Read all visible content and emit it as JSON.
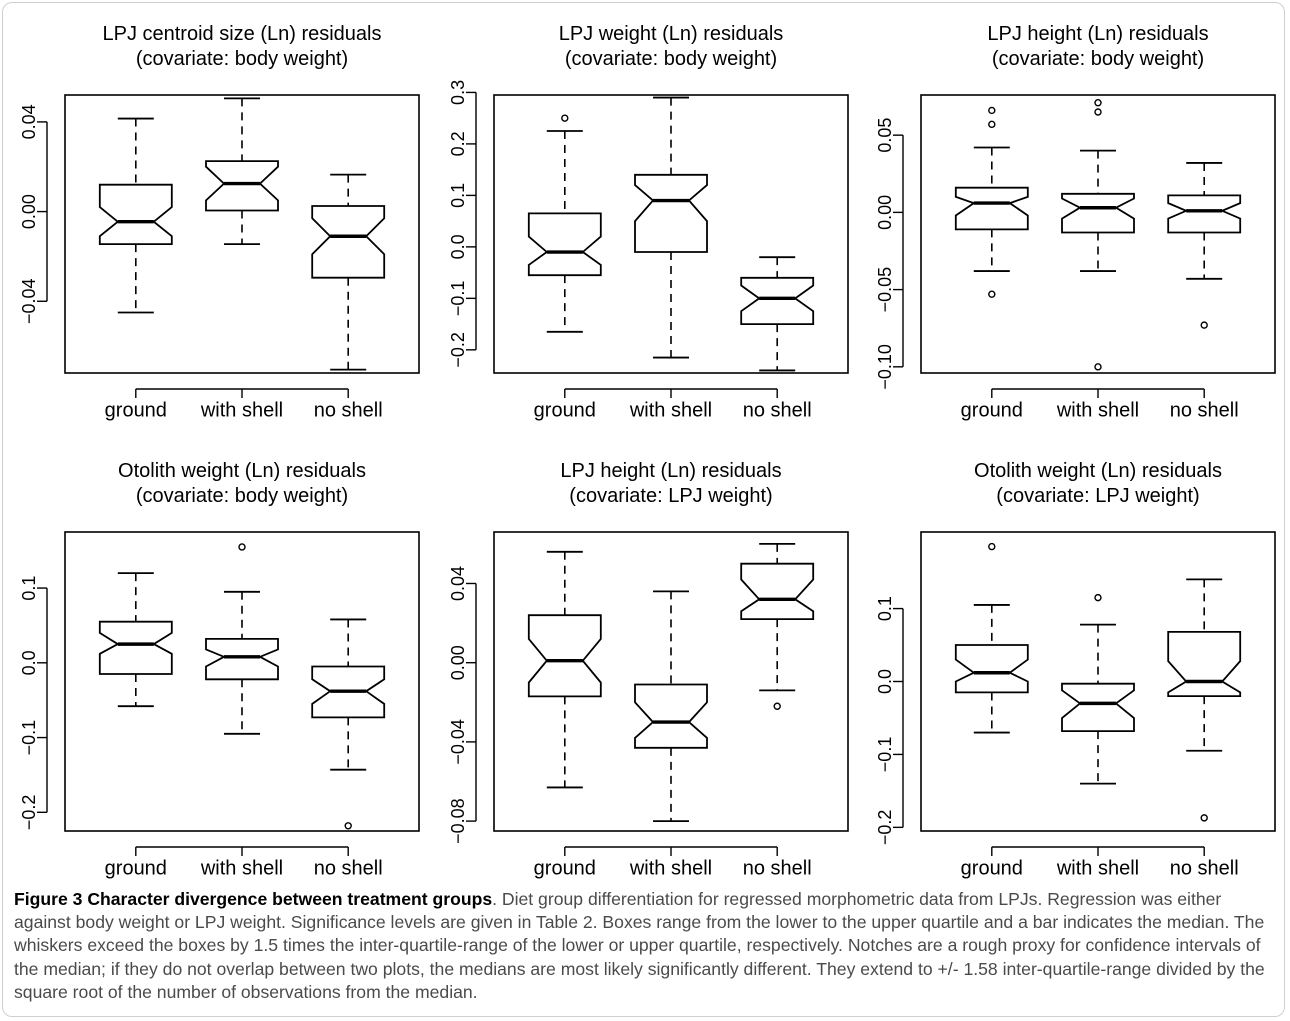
{
  "chart_data": [
    {
      "type": "boxplot",
      "title": "LPJ centroid size (Ln) residuals",
      "subtitle": "(covariate: body weight)",
      "categories": [
        "ground",
        "with shell",
        "no shell"
      ],
      "ylim": [
        -0.072,
        0.052
      ],
      "yticks": [
        -0.04,
        0.0,
        0.04
      ],
      "ytick_labels": [
        "−0.04",
        "0.00",
        "0.04"
      ],
      "series": [
        {
          "name": "ground",
          "whisker_low": -0.045,
          "q1": -0.0145,
          "median": -0.0045,
          "q3": 0.012,
          "whisker_high": 0.0415,
          "notch": [
            -0.011,
            0.002
          ],
          "outliers": []
        },
        {
          "name": "with shell",
          "whisker_low": -0.0145,
          "q1": 0.0005,
          "median": 0.0125,
          "q3": 0.0225,
          "whisker_high": 0.0505,
          "notch": [
            0.005,
            0.02
          ],
          "outliers": []
        },
        {
          "name": "no shell",
          "whisker_low": -0.0705,
          "q1": -0.0295,
          "median": -0.011,
          "q3": 0.0025,
          "whisker_high": 0.0165,
          "notch": [
            -0.019,
            -0.003
          ],
          "outliers": []
        }
      ]
    },
    {
      "type": "boxplot",
      "title": "LPJ weight (Ln) residuals",
      "subtitle": "(covariate: body weight)",
      "categories": [
        "ground",
        "with shell",
        "no shell"
      ],
      "ylim": [
        -0.245,
        0.295
      ],
      "yticks": [
        -0.2,
        -0.1,
        0.0,
        0.1,
        0.2,
        0.3
      ],
      "ytick_labels": [
        "−0.2",
        "−0.1",
        "0.0",
        "0.1",
        "0.2",
        "0.3"
      ],
      "series": [
        {
          "name": "ground",
          "whisker_low": -0.165,
          "q1": -0.055,
          "median": -0.01,
          "q3": 0.065,
          "whisker_high": 0.225,
          "notch": [
            -0.035,
            0.02
          ],
          "outliers": [
            0.25
          ]
        },
        {
          "name": "with shell",
          "whisker_low": -0.215,
          "q1": -0.01,
          "median": 0.09,
          "q3": 0.14,
          "whisker_high": 0.29,
          "notch": [
            0.05,
            0.12
          ],
          "outliers": []
        },
        {
          "name": "no shell",
          "whisker_low": -0.24,
          "q1": -0.15,
          "median": -0.1,
          "q3": -0.06,
          "whisker_high": -0.02,
          "notch": [
            -0.125,
            -0.075
          ],
          "outliers": []
        }
      ]
    },
    {
      "type": "boxplot",
      "title": "LPJ height (Ln) residuals",
      "subtitle": "(covariate: body weight)",
      "categories": [
        "ground",
        "with shell",
        "no shell"
      ],
      "ylim": [
        -0.104,
        0.076
      ],
      "yticks": [
        -0.1,
        -0.05,
        0.0,
        0.05
      ],
      "ytick_labels": [
        "−0.10",
        "−0.05",
        "0.00",
        "0.05"
      ],
      "series": [
        {
          "name": "ground",
          "whisker_low": -0.038,
          "q1": -0.011,
          "median": 0.006,
          "q3": 0.016,
          "whisker_high": 0.042,
          "notch": [
            -0.002,
            0.01
          ],
          "outliers": [
            0.066,
            0.057,
            -0.053
          ]
        },
        {
          "name": "with shell",
          "whisker_low": -0.038,
          "q1": -0.013,
          "median": 0.003,
          "q3": 0.012,
          "whisker_high": 0.04,
          "notch": [
            -0.004,
            0.009
          ],
          "outliers": [
            0.071,
            0.065,
            -0.1
          ]
        },
        {
          "name": "no shell",
          "whisker_low": -0.043,
          "q1": -0.013,
          "median": 0.001,
          "q3": 0.011,
          "whisker_high": 0.032,
          "notch": [
            -0.004,
            0.006
          ],
          "outliers": [
            -0.073
          ]
        }
      ]
    },
    {
      "type": "boxplot",
      "title": "Otolith weight (Ln) residuals",
      "subtitle": "(covariate: body weight)",
      "categories": [
        "ground",
        "with shell",
        "no shell"
      ],
      "ylim": [
        -0.225,
        0.175
      ],
      "yticks": [
        -0.2,
        -0.1,
        0.0,
        0.1
      ],
      "ytick_labels": [
        "−0.2",
        "−0.1",
        "0.0",
        "0.1"
      ],
      "series": [
        {
          "name": "ground",
          "whisker_low": -0.058,
          "q1": -0.015,
          "median": 0.025,
          "q3": 0.055,
          "whisker_high": 0.12,
          "notch": [
            0.012,
            0.04
          ],
          "outliers": []
        },
        {
          "name": "with shell",
          "whisker_low": -0.095,
          "q1": -0.022,
          "median": 0.008,
          "q3": 0.032,
          "whisker_high": 0.095,
          "notch": [
            -0.005,
            0.018
          ],
          "outliers": [
            0.155
          ]
        },
        {
          "name": "no shell",
          "whisker_low": -0.143,
          "q1": -0.073,
          "median": -0.038,
          "q3": -0.005,
          "whisker_high": 0.058,
          "notch": [
            -0.055,
            -0.022
          ],
          "outliers": [
            -0.218
          ]
        }
      ]
    },
    {
      "type": "boxplot",
      "title": "LPJ height (Ln) residuals",
      "subtitle": "(covariate: LPJ weight)",
      "categories": [
        "ground",
        "with shell",
        "no shell"
      ],
      "ylim": [
        -0.085,
        0.066
      ],
      "yticks": [
        -0.08,
        -0.04,
        0.0,
        0.04
      ],
      "ytick_labels": [
        "−0.08",
        "−0.04",
        "0.00",
        "0.04"
      ],
      "series": [
        {
          "name": "ground",
          "whisker_low": -0.063,
          "q1": -0.017,
          "median": 0.001,
          "q3": 0.024,
          "whisker_high": 0.056,
          "notch": [
            -0.01,
            0.012
          ],
          "outliers": []
        },
        {
          "name": "with shell",
          "whisker_low": -0.08,
          "q1": -0.043,
          "median": -0.03,
          "q3": -0.011,
          "whisker_high": 0.036,
          "notch": [
            -0.038,
            -0.02
          ],
          "outliers": []
        },
        {
          "name": "no shell",
          "whisker_low": -0.014,
          "q1": 0.022,
          "median": 0.032,
          "q3": 0.05,
          "whisker_high": 0.06,
          "notch": [
            0.026,
            0.042
          ],
          "outliers": [
            -0.022
          ]
        }
      ]
    },
    {
      "type": "boxplot",
      "title": "Otolith weight (Ln) residuals",
      "subtitle": "(covariate: LPJ weight)",
      "categories": [
        "ground",
        "with shell",
        "no shell"
      ],
      "ylim": [
        -0.205,
        0.205
      ],
      "yticks": [
        -0.2,
        -0.1,
        0.0,
        0.1
      ],
      "ytick_labels": [
        "−0.2",
        "−0.1",
        "0.0",
        "0.1"
      ],
      "series": [
        {
          "name": "ground",
          "whisker_low": -0.07,
          "q1": -0.015,
          "median": 0.012,
          "q3": 0.05,
          "whisker_high": 0.105,
          "notch": [
            0.0,
            0.03
          ],
          "outliers": [
            0.185
          ]
        },
        {
          "name": "with shell",
          "whisker_low": -0.14,
          "q1": -0.068,
          "median": -0.03,
          "q3": -0.003,
          "whisker_high": 0.078,
          "notch": [
            -0.05,
            -0.012
          ],
          "outliers": [
            0.115
          ]
        },
        {
          "name": "no shell",
          "whisker_low": -0.095,
          "q1": -0.02,
          "median": 0.0,
          "q3": 0.068,
          "whisker_high": 0.14,
          "notch": [
            -0.015,
            0.028
          ],
          "outliers": [
            -0.187
          ]
        }
      ]
    }
  ],
  "caption": {
    "label": "Figure 3 Character divergence between treatment groups",
    "text": ". Diet group differentiation for regressed morphometric data from LPJs. Regression was either against body weight or LPJ weight. Significance levels are given in Table 2. Boxes range from the lower to the upper quartile and a bar indicates the median. The whiskers exceed the boxes by 1.5 times the inter-quartile-range of the lower or upper quartile, respectively. Notches are a rough proxy for confidence intervals of the median; if they do not overlap between two plots, the medians are most likely significantly different. They extend to +/- 1.58 inter-quartile-range divided by the square root of the number of observations from the median."
  }
}
